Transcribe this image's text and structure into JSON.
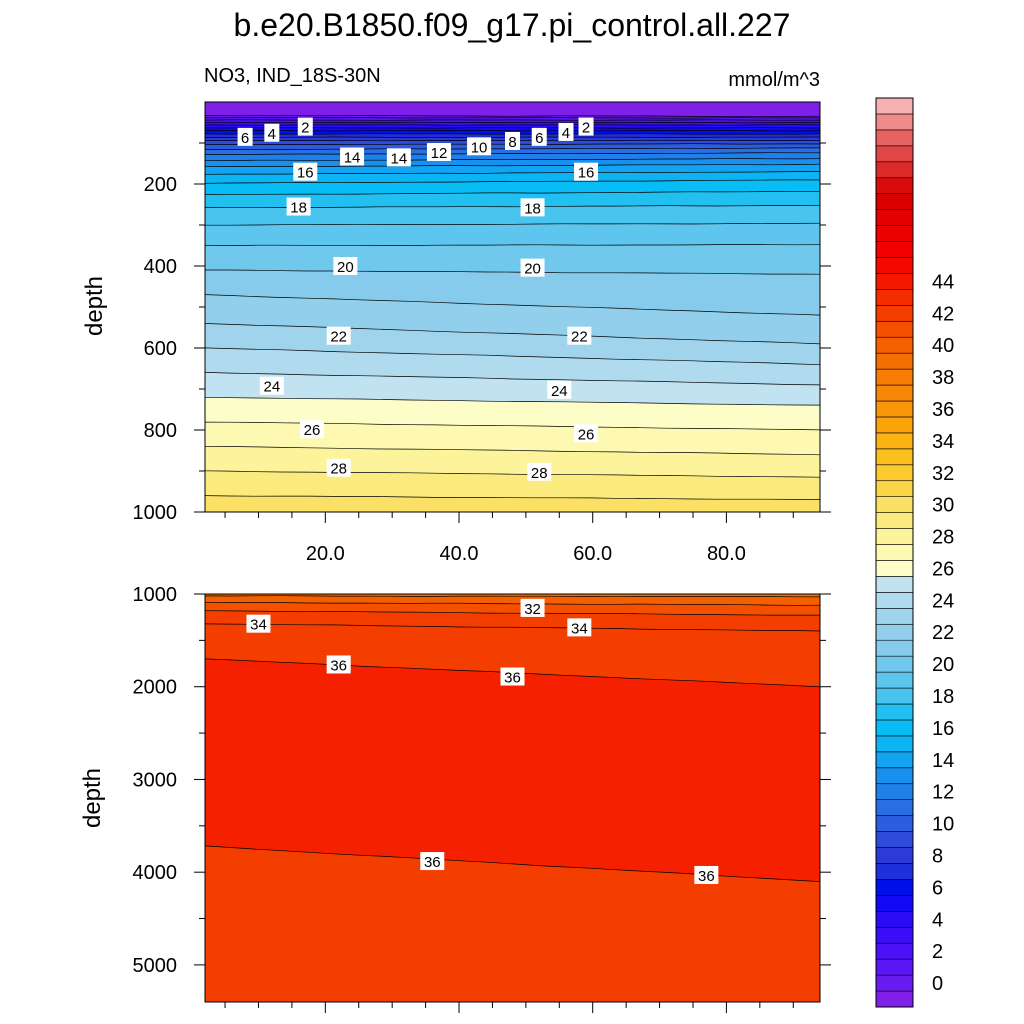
{
  "chart_data": {
    "type": "contour",
    "title": "b.e20.B1850.f09_g17.pi_control.all.227",
    "left_subtitle": "NO3, IND_18S-30N",
    "right_subtitle": "mmol/m^3",
    "ylabel": "depth",
    "x_tick_labels": [
      "20.0",
      "40.0",
      "60.0",
      "80.0"
    ],
    "x_range": [
      2,
      94
    ],
    "x_ticks": [
      20,
      40,
      60,
      80
    ],
    "x_minor_ticks": [
      5,
      10,
      15,
      25,
      30,
      35,
      45,
      50,
      55,
      65,
      70,
      75,
      85,
      90
    ],
    "colorbar": {
      "levels": [
        0,
        2,
        4,
        6,
        8,
        10,
        12,
        14,
        16,
        18,
        20,
        22,
        24,
        26,
        28,
        30,
        32,
        34,
        36,
        38,
        40,
        42,
        44
      ],
      "interval": 1,
      "colors": [
        "#7f1fe8",
        "#6a1cf0",
        "#5a16f5",
        "#4b12f8",
        "#3a0ef8",
        "#2a0cf8",
        "#1208f5",
        "#0010ea",
        "#1f2fdc",
        "#2c3ad6",
        "#2f4bdc",
        "#2c5de0",
        "#2a6ee4",
        "#2080ea",
        "#1a90ee",
        "#12a4f2",
        "#0cb4f4",
        "#08bdf5",
        "#22c0f0",
        "#48c4ef",
        "#5ec6ee",
        "#70c8ec",
        "#86cbec",
        "#92cfec",
        "#a0d4ed",
        "#b0dbef",
        "#c0e2f1",
        "#fdfdc8",
        "#fdf9b2",
        "#fdf39a",
        "#fbea7e",
        "#fbe066",
        "#fbd548",
        "#fbca30",
        "#fbbf20",
        "#fbb314",
        "#faa40a",
        "#f89608",
        "#f78806",
        "#f67c04",
        "#f56e02",
        "#f46000",
        "#f45000",
        "#f43e00",
        "#f42c00",
        "#f41800",
        "#f40800",
        "#f20000",
        "#ec0000",
        "#e40000",
        "#da0000",
        "#d80c0c",
        "#dc2a2a",
        "#e04646",
        "#e66262",
        "#ee8a8a",
        "#f6b2b2"
      ]
    },
    "upper_panel": {
      "x_range": [
        2,
        94
      ],
      "depth_range": [
        0,
        1000
      ],
      "ytick_labels": [
        "200",
        "400",
        "600",
        "800",
        "1000"
      ],
      "y_ticks": [
        200,
        400,
        600,
        800,
        1000
      ],
      "y_minor_ticks": [
        100,
        300,
        500,
        700,
        900
      ],
      "x_tick_labels_visible": true,
      "contour_x": [
        2,
        94
      ],
      "contour_depths": {
        "0": [
          33,
          35
        ],
        "1": [
          38,
          39
        ],
        "2": [
          44,
          44
        ],
        "3": [
          50,
          50
        ],
        "4": [
          56,
          56
        ],
        "5": [
          63,
          63
        ],
        "6": [
          70,
          70
        ],
        "7": [
          78,
          78
        ],
        "8": [
          86,
          86
        ],
        "9": [
          94,
          94
        ],
        "10": [
          104,
          102
        ],
        "11": [
          116,
          112
        ],
        "12": [
          128,
          124
        ],
        "13": [
          143,
          138
        ],
        "14": [
          158,
          152
        ],
        "15": [
          176,
          170
        ],
        "16": [
          198,
          190
        ],
        "17": [
          226,
          218
        ],
        "18": [
          258,
          252
        ],
        "19": [
          300,
          296
        ],
        "20": [
          350,
          348
        ],
        "21": [
          410,
          420
        ],
        "22": [
          470,
          520
        ],
        "23": [
          540,
          590
        ],
        "24": [
          600,
          640
        ],
        "25": [
          660,
          690
        ],
        "26": [
          720,
          740
        ],
        "27": [
          780,
          800
        ],
        "28": [
          840,
          860
        ],
        "29": [
          900,
          915
        ],
        "30": [
          960,
          970
        ]
      },
      "contour_labels": [
        {
          "text": "2",
          "x": 17,
          "depth": 60
        },
        {
          "text": "4",
          "x": 12,
          "depth": 75
        },
        {
          "text": "6",
          "x": 8,
          "depth": 85
        },
        {
          "text": "2",
          "x": 59,
          "depth": 60
        },
        {
          "text": "4",
          "x": 56,
          "depth": 73
        },
        {
          "text": "6",
          "x": 52,
          "depth": 85
        },
        {
          "text": "8",
          "x": 48,
          "depth": 95
        },
        {
          "text": "10",
          "x": 43,
          "depth": 108
        },
        {
          "text": "12",
          "x": 37,
          "depth": 122
        },
        {
          "text": "14",
          "x": 31,
          "depth": 135
        },
        {
          "text": "14",
          "x": 24,
          "depth": 133
        },
        {
          "text": "16",
          "x": 17,
          "depth": 170
        },
        {
          "text": "16",
          "x": 59,
          "depth": 170
        },
        {
          "text": "18",
          "x": 16,
          "depth": 255
        },
        {
          "text": "18",
          "x": 51,
          "depth": 257
        },
        {
          "text": "20",
          "x": 23,
          "depth": 400
        },
        {
          "text": "20",
          "x": 51,
          "depth": 404
        },
        {
          "text": "22",
          "x": 22,
          "depth": 570
        },
        {
          "text": "22",
          "x": 58,
          "depth": 570
        },
        {
          "text": "24",
          "x": 12,
          "depth": 692
        },
        {
          "text": "24",
          "x": 55,
          "depth": 702
        },
        {
          "text": "26",
          "x": 18,
          "depth": 798
        },
        {
          "text": "26",
          "x": 59,
          "depth": 808
        },
        {
          "text": "28",
          "x": 22,
          "depth": 892
        },
        {
          "text": "28",
          "x": 52,
          "depth": 902
        }
      ]
    },
    "lower_panel": {
      "x_range": [
        2,
        94
      ],
      "depth_range": [
        1000,
        5400
      ],
      "ytick_labels": [
        "1000",
        "2000",
        "3000",
        "4000",
        "5000"
      ],
      "y_ticks": [
        1000,
        2000,
        3000,
        4000,
        5000
      ],
      "y_minor_ticks": [
        1500,
        2500,
        3500,
        4500
      ],
      "x_tick_labels_visible": false,
      "contour_x": [
        2,
        94
      ],
      "contour_depths": {
        "31": [
          1020,
          1030
        ],
        "32": [
          1090,
          1120
        ],
        "33": [
          1180,
          1230
        ],
        "34": [
          1320,
          1400
        ],
        "35": [
          1700,
          2000
        ],
        "36": [
          3720,
          4100
        ]
      },
      "bands": [
        {
          "from_level": 30,
          "to_level": 31,
          "color": "#f56e02"
        },
        {
          "from_level": 31,
          "to_level": 32,
          "color": "#f46000"
        },
        {
          "from_level": 32,
          "to_level": 33,
          "color": "#f45000"
        },
        {
          "from_level": 33,
          "to_level": 35,
          "color": "#f43e00"
        },
        {
          "from_level": 35,
          "to_level": 36,
          "color": "#f42000"
        },
        {
          "from_level": 36,
          "to_level": 99,
          "color": "#f43e00"
        }
      ],
      "contour_labels": [
        {
          "text": "32",
          "x": 51,
          "depth": 1150
        },
        {
          "text": "34",
          "x": 10,
          "depth": 1320
        },
        {
          "text": "34",
          "x": 58,
          "depth": 1360
        },
        {
          "text": "36",
          "x": 22,
          "depth": 1760
        },
        {
          "text": "36",
          "x": 48,
          "depth": 1890
        },
        {
          "text": "36",
          "x": 36,
          "depth": 3880
        },
        {
          "text": "36",
          "x": 77,
          "depth": 4030
        }
      ]
    }
  }
}
